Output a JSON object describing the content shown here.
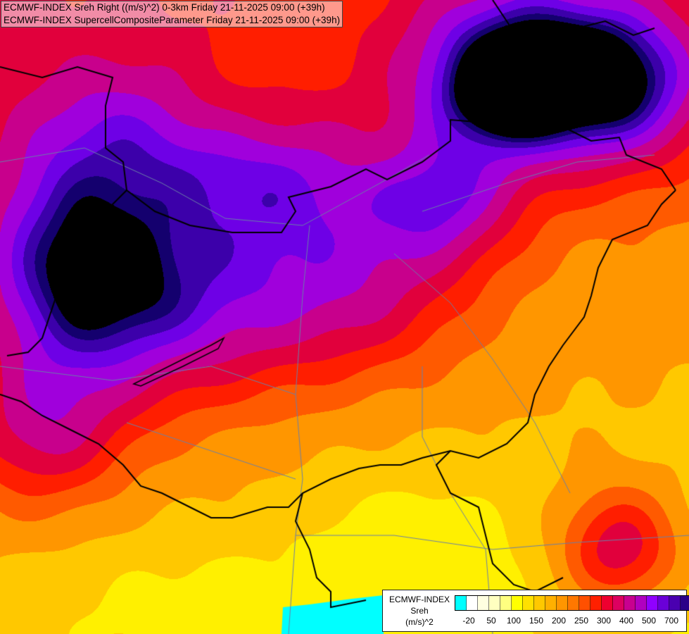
{
  "header": {
    "line1": "ECMWF-INDEX Sreh Right ((m/s)^2) 0-3km Friday 21-11-2025 09:00 (+39h)",
    "line2": "ECMWF-INDEX SupercellCompositeParameter Friday 21-11-2025 09:00 (+39h)"
  },
  "legend": {
    "title1": "ECMWF-INDEX",
    "title2": "Sreh",
    "title3": "(m/s)^2",
    "colors": [
      "#00ffff",
      "#ffffff",
      "#ffffe0",
      "#ffffc0",
      "#ffff80",
      "#ffff00",
      "#ffe000",
      "#ffc800",
      "#ffb000",
      "#ff9600",
      "#ff7800",
      "#ff5000",
      "#ff2000",
      "#ee0030",
      "#dd0060",
      "#c80090",
      "#b000c0",
      "#9000ff",
      "#6a00d8",
      "#4a00b0",
      "#2a0088",
      "#000060"
    ],
    "ticks": [
      "-20",
      "50",
      "100",
      "150",
      "200",
      "250",
      "300",
      "400",
      "500",
      "700"
    ]
  },
  "map": {
    "palette": {
      "field_low": "#ffff00",
      "field_mid": "#ff2000",
      "field_high": "#a000ff",
      "field_max": "#000070",
      "border": "#000000",
      "river": "#6b7fa8",
      "sea": "#00ffff"
    }
  }
}
